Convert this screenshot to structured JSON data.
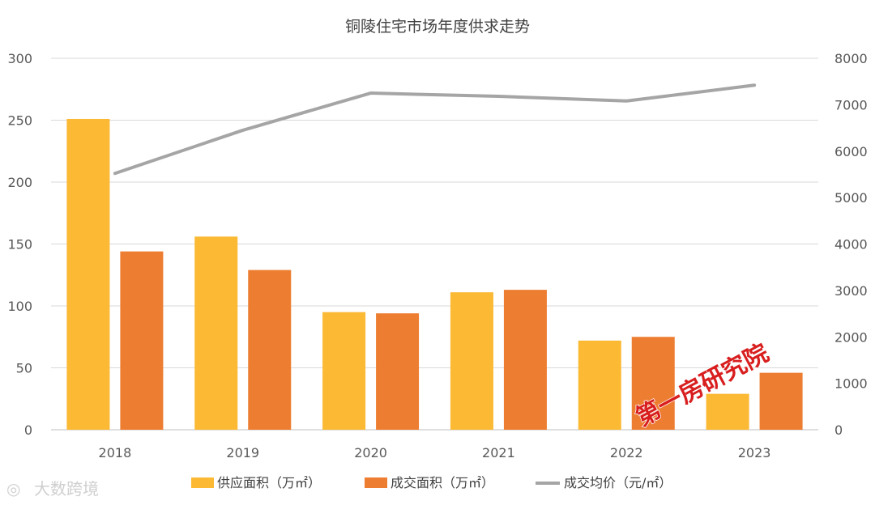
{
  "chart_data": {
    "type": "bar",
    "title": "铜陵住宅市场年度供求走势",
    "categories": [
      "2018",
      "2019",
      "2020",
      "2021",
      "2022",
      "2023"
    ],
    "series": [
      {
        "name": "供应面积（万㎡）",
        "kind": "bar",
        "axis": "left",
        "color": "#FBB934",
        "values": [
          251,
          156,
          95,
          111,
          72,
          29
        ]
      },
      {
        "name": "成交面积（万㎡）",
        "kind": "bar",
        "axis": "left",
        "color": "#ED7D31",
        "values": [
          144,
          129,
          94,
          113,
          75,
          46
        ]
      },
      {
        "name": "成交均价（元/㎡）",
        "kind": "line",
        "axis": "right",
        "color": "#A5A5A5",
        "values": [
          5520,
          6450,
          7250,
          7180,
          7080,
          7420
        ]
      }
    ],
    "y_left": {
      "min": 0,
      "max": 300,
      "ticks": [
        "0",
        "50",
        "100",
        "150",
        "200",
        "250",
        "300"
      ]
    },
    "y_right": {
      "min": 0,
      "max": 8000,
      "ticks": [
        "0",
        "1000",
        "2000",
        "3000",
        "4000",
        "5000",
        "6000",
        "7000",
        "8000"
      ]
    },
    "grid": true,
    "legend_position": "bottom"
  },
  "watermark": {
    "main": "第一房研究院",
    "corner": "大数跨境"
  }
}
